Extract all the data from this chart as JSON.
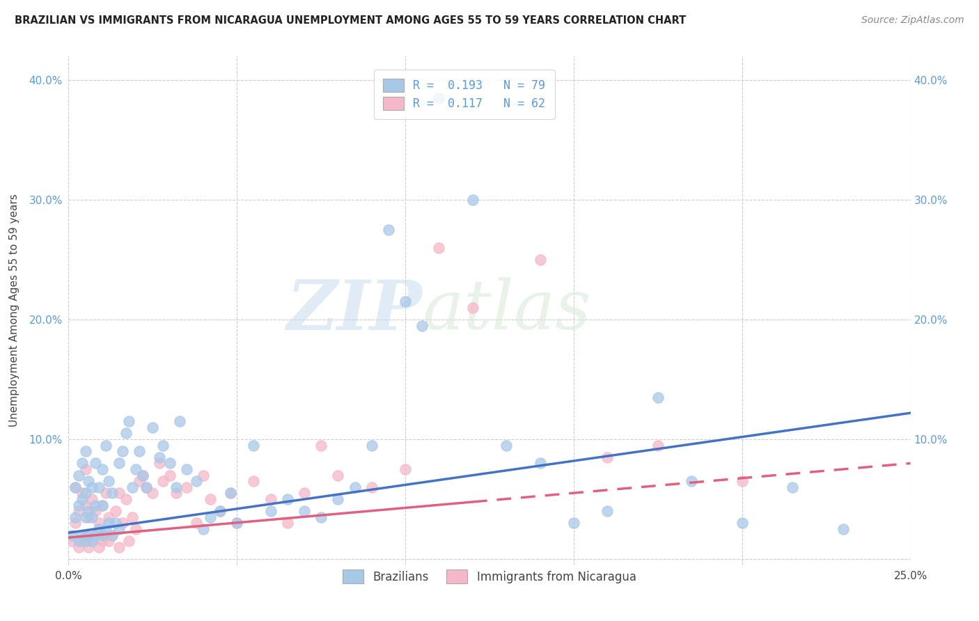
{
  "title": "BRAZILIAN VS IMMIGRANTS FROM NICARAGUA UNEMPLOYMENT AMONG AGES 55 TO 59 YEARS CORRELATION CHART",
  "source": "Source: ZipAtlas.com",
  "ylabel": "Unemployment Among Ages 55 to 59 years",
  "xlim": [
    0.0,
    0.25
  ],
  "ylim": [
    -0.005,
    0.42
  ],
  "xticks": [
    0.0,
    0.05,
    0.1,
    0.15,
    0.2,
    0.25
  ],
  "yticks": [
    0.0,
    0.1,
    0.2,
    0.3,
    0.4
  ],
  "xtick_labels": [
    "0.0%",
    "",
    "",
    "",
    "",
    "25.0%"
  ],
  "ytick_labels": [
    "",
    "10.0%",
    "20.0%",
    "30.0%",
    "40.0%"
  ],
  "background_color": "#ffffff",
  "grid_color": "#cccccc",
  "watermark_zip": "ZIP",
  "watermark_atlas": "atlas",
  "blue_color": "#a8c8e8",
  "pink_color": "#f4b8c8",
  "blue_line_color": "#4472c4",
  "pink_line_color": "#e06080",
  "label1": "Brazilians",
  "label2": "Immigrants from Nicaragua",
  "legend_text": [
    "R =  0.193   N = 79",
    "R =  0.117   N = 62"
  ],
  "legend_colors": [
    "#a8c8e8",
    "#f4b8c8"
  ],
  "blue_scatter_x": [
    0.001,
    0.002,
    0.002,
    0.003,
    0.003,
    0.003,
    0.004,
    0.004,
    0.004,
    0.005,
    0.005,
    0.005,
    0.005,
    0.006,
    0.006,
    0.006,
    0.007,
    0.007,
    0.007,
    0.008,
    0.008,
    0.008,
    0.009,
    0.009,
    0.01,
    0.01,
    0.01,
    0.011,
    0.011,
    0.012,
    0.012,
    0.013,
    0.013,
    0.014,
    0.015,
    0.015,
    0.016,
    0.017,
    0.018,
    0.019,
    0.02,
    0.021,
    0.022,
    0.023,
    0.025,
    0.027,
    0.028,
    0.03,
    0.032,
    0.033,
    0.035,
    0.038,
    0.04,
    0.042,
    0.045,
    0.048,
    0.05,
    0.055,
    0.06,
    0.065,
    0.07,
    0.075,
    0.08,
    0.085,
    0.09,
    0.095,
    0.1,
    0.105,
    0.11,
    0.12,
    0.13,
    0.14,
    0.15,
    0.16,
    0.175,
    0.185,
    0.2,
    0.215,
    0.23
  ],
  "blue_scatter_y": [
    0.02,
    0.035,
    0.06,
    0.015,
    0.045,
    0.07,
    0.02,
    0.05,
    0.08,
    0.015,
    0.035,
    0.055,
    0.09,
    0.02,
    0.04,
    0.065,
    0.015,
    0.035,
    0.06,
    0.02,
    0.045,
    0.08,
    0.025,
    0.06,
    0.02,
    0.045,
    0.075,
    0.025,
    0.095,
    0.03,
    0.065,
    0.02,
    0.055,
    0.03,
    0.025,
    0.08,
    0.09,
    0.105,
    0.115,
    0.06,
    0.075,
    0.09,
    0.07,
    0.06,
    0.11,
    0.085,
    0.095,
    0.08,
    0.06,
    0.115,
    0.075,
    0.065,
    0.025,
    0.035,
    0.04,
    0.055,
    0.03,
    0.095,
    0.04,
    0.05,
    0.04,
    0.035,
    0.05,
    0.06,
    0.095,
    0.275,
    0.215,
    0.195,
    0.385,
    0.3,
    0.095,
    0.08,
    0.03,
    0.04,
    0.135,
    0.065,
    0.03,
    0.06,
    0.025
  ],
  "pink_scatter_x": [
    0.001,
    0.002,
    0.002,
    0.003,
    0.003,
    0.004,
    0.004,
    0.005,
    0.005,
    0.005,
    0.006,
    0.006,
    0.007,
    0.007,
    0.008,
    0.008,
    0.009,
    0.009,
    0.01,
    0.01,
    0.011,
    0.011,
    0.012,
    0.012,
    0.013,
    0.014,
    0.015,
    0.015,
    0.016,
    0.017,
    0.018,
    0.019,
    0.02,
    0.021,
    0.022,
    0.023,
    0.025,
    0.027,
    0.028,
    0.03,
    0.032,
    0.035,
    0.038,
    0.04,
    0.042,
    0.045,
    0.048,
    0.05,
    0.055,
    0.06,
    0.065,
    0.07,
    0.075,
    0.08,
    0.09,
    0.1,
    0.11,
    0.12,
    0.14,
    0.16,
    0.175,
    0.2
  ],
  "pink_scatter_y": [
    0.015,
    0.03,
    0.06,
    0.01,
    0.04,
    0.015,
    0.055,
    0.02,
    0.045,
    0.075,
    0.01,
    0.035,
    0.015,
    0.05,
    0.02,
    0.04,
    0.01,
    0.03,
    0.015,
    0.045,
    0.02,
    0.055,
    0.015,
    0.035,
    0.02,
    0.04,
    0.01,
    0.055,
    0.03,
    0.05,
    0.015,
    0.035,
    0.025,
    0.065,
    0.07,
    0.06,
    0.055,
    0.08,
    0.065,
    0.07,
    0.055,
    0.06,
    0.03,
    0.07,
    0.05,
    0.04,
    0.055,
    0.03,
    0.065,
    0.05,
    0.03,
    0.055,
    0.095,
    0.07,
    0.06,
    0.075,
    0.26,
    0.21,
    0.25,
    0.085,
    0.095,
    0.065
  ],
  "blue_line_start_x": 0.0,
  "blue_line_end_x": 0.25,
  "blue_line_start_y": 0.022,
  "blue_line_end_y": 0.122,
  "pink_line_start_x": 0.0,
  "pink_line_end_x": 0.25,
  "pink_line_start_y": 0.018,
  "pink_line_end_y": 0.08
}
